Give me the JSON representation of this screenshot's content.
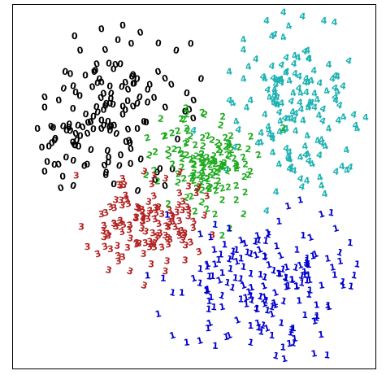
{
  "chart_data": {
    "type": "scatter",
    "title": "",
    "xlabel": "",
    "ylabel": "",
    "xlim": [
      0,
      100
    ],
    "ylim": [
      0,
      100
    ],
    "grid": false,
    "legend": "none",
    "markers": "digit glyphs",
    "series": [
      {
        "glyph": "0",
        "color": "#000000",
        "center": [
          26,
          70
        ],
        "spread": [
          10,
          10
        ],
        "count": 150,
        "seed": 11,
        "points": [
          [
            18,
            88
          ],
          [
            24,
            94
          ],
          [
            30,
            95
          ],
          [
            35,
            93
          ],
          [
            40,
            90
          ],
          [
            45,
            88
          ],
          [
            40,
            82
          ],
          [
            34,
            80
          ],
          [
            28,
            84
          ],
          [
            22,
            82
          ],
          [
            16,
            78
          ],
          [
            12,
            74
          ],
          [
            8,
            72
          ],
          [
            6,
            66
          ],
          [
            10,
            62
          ],
          [
            14,
            58
          ],
          [
            20,
            56
          ],
          [
            26,
            58
          ],
          [
            32,
            62
          ],
          [
            36,
            68
          ],
          [
            42,
            72
          ],
          [
            48,
            76
          ],
          [
            52,
            80
          ],
          [
            50,
            74
          ],
          [
            30,
            70
          ],
          [
            24,
            66
          ],
          [
            18,
            64
          ],
          [
            12,
            56
          ],
          [
            8,
            54
          ],
          [
            16,
            50
          ]
        ]
      },
      {
        "glyph": "4",
        "color": "#20b2b2",
        "center": [
          79,
          71
        ],
        "spread": [
          8,
          11
        ],
        "count": 160,
        "seed": 23,
        "points": [
          [
            64,
            91
          ],
          [
            72,
            92
          ],
          [
            82,
            88
          ],
          [
            88,
            84
          ],
          [
            92,
            78
          ],
          [
            95,
            70
          ],
          [
            93,
            60
          ],
          [
            90,
            54
          ],
          [
            86,
            50
          ],
          [
            80,
            52
          ],
          [
            74,
            56
          ],
          [
            68,
            62
          ],
          [
            62,
            68
          ],
          [
            60,
            74
          ],
          [
            64,
            80
          ],
          [
            70,
            80
          ],
          [
            78,
            76
          ],
          [
            84,
            72
          ],
          [
            88,
            66
          ],
          [
            82,
            64
          ],
          [
            76,
            66
          ],
          [
            70,
            70
          ],
          [
            76,
            86
          ],
          [
            86,
            62
          ],
          [
            90,
            74
          ],
          [
            66,
            74
          ],
          [
            72,
            64
          ],
          [
            80,
            58
          ],
          [
            96,
            66
          ],
          [
            60,
            82
          ]
        ]
      },
      {
        "glyph": "2",
        "color": "#1faa1f",
        "center": [
          54,
          56
        ],
        "spread": [
          7,
          6
        ],
        "count": 140,
        "seed": 37,
        "points": [
          [
            42,
            64
          ],
          [
            48,
            66
          ],
          [
            54,
            64
          ],
          [
            60,
            62
          ],
          [
            64,
            58
          ],
          [
            66,
            54
          ],
          [
            62,
            50
          ],
          [
            58,
            46
          ],
          [
            56,
            42
          ],
          [
            60,
            38
          ],
          [
            50,
            56
          ],
          [
            46,
            60
          ],
          [
            52,
            58
          ],
          [
            56,
            54
          ],
          [
            62,
            46
          ],
          [
            64,
            42
          ],
          [
            48,
            70
          ],
          [
            53,
            70
          ],
          [
            44,
            56
          ],
          [
            58,
            36
          ]
        ]
      },
      {
        "glyph": "3",
        "color": "#b22222",
        "center": [
          37,
          40
        ],
        "spread": [
          8,
          6
        ],
        "count": 130,
        "seed": 41,
        "points": [
          [
            30,
            52
          ],
          [
            36,
            54
          ],
          [
            42,
            52
          ],
          [
            46,
            48
          ],
          [
            48,
            44
          ],
          [
            44,
            40
          ],
          [
            40,
            36
          ],
          [
            34,
            34
          ],
          [
            30,
            30
          ],
          [
            26,
            36
          ],
          [
            24,
            42
          ],
          [
            28,
            46
          ],
          [
            34,
            44
          ],
          [
            40,
            44
          ],
          [
            46,
            36
          ],
          [
            38,
            28
          ],
          [
            32,
            26
          ],
          [
            36,
            22
          ],
          [
            42,
            26
          ],
          [
            50,
            40
          ]
        ]
      },
      {
        "glyph": "1",
        "color": "#0000cc",
        "center": [
          70,
          23
        ],
        "spread": [
          13,
          10
        ],
        "count": 180,
        "seed": 53,
        "points": [
          [
            80,
            46
          ],
          [
            86,
            42
          ],
          [
            90,
            38
          ],
          [
            94,
            34
          ],
          [
            96,
            28
          ],
          [
            92,
            22
          ],
          [
            88,
            16
          ],
          [
            84,
            12
          ],
          [
            78,
            10
          ],
          [
            72,
            8
          ],
          [
            66,
            6
          ],
          [
            60,
            8
          ],
          [
            54,
            10
          ],
          [
            48,
            6
          ],
          [
            44,
            8
          ],
          [
            40,
            14
          ],
          [
            44,
            20
          ],
          [
            50,
            24
          ],
          [
            56,
            28
          ],
          [
            62,
            32
          ],
          [
            68,
            36
          ],
          [
            74,
            40
          ],
          [
            70,
            30
          ],
          [
            64,
            22
          ],
          [
            58,
            16
          ],
          [
            76,
            24
          ],
          [
            82,
            28
          ],
          [
            86,
            22
          ],
          [
            60,
            38
          ],
          [
            72,
            16
          ]
        ]
      }
    ]
  }
}
